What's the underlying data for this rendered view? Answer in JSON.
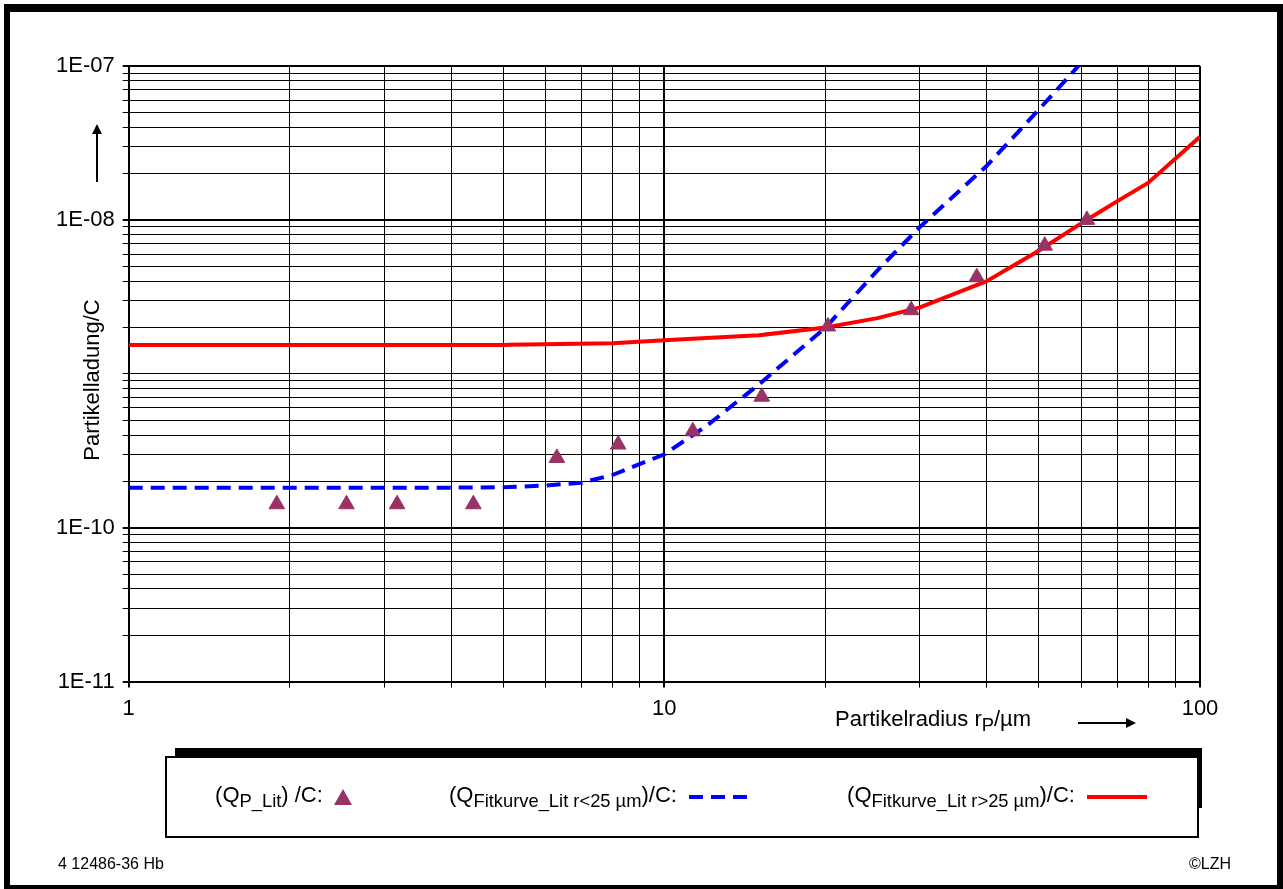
{
  "chart_data": {
    "type": "line",
    "xlabel": "Partikelradius r$_{P}$/µm",
    "ylabel": "Partikelladung/C",
    "log": "xy",
    "grid": true,
    "legend": "bottom",
    "xlim": [
      1,
      100
    ],
    "ylim": [
      1e-11,
      1e-07
    ],
    "xticks": [
      1,
      {
        "value": 2,
        "label": null
      },
      {
        "value": 3,
        "label": null
      },
      {
        "value": 4,
        "label": null
      },
      {
        "value": 5,
        "label": null
      },
      {
        "value": 6,
        "label": null
      },
      {
        "value": 7,
        "label": null
      },
      {
        "value": 8,
        "label": null
      },
      {
        "value": 9,
        "label": null
      },
      10,
      {
        "value": 20,
        "label": null
      },
      {
        "value": 30,
        "label": null
      },
      {
        "value": 40,
        "label": null
      },
      {
        "value": 50,
        "label": null
      },
      {
        "value": 60,
        "label": null
      },
      {
        "value": 70,
        "label": null
      },
      {
        "value": 80,
        "label": null
      },
      {
        "value": 90,
        "label": null
      },
      100
    ],
    "yticks": [
      {
        "value": 1e-11,
        "label": "1E-11"
      },
      {
        "value": 2e-11,
        "label": null
      },
      {
        "value": 3e-11,
        "label": null
      },
      {
        "value": 4e-11,
        "label": null
      },
      {
        "value": 5e-11,
        "label": null
      },
      {
        "value": 6e-11,
        "label": null
      },
      {
        "value": 7e-11,
        "label": null
      },
      {
        "value": 8e-11,
        "label": null
      },
      {
        "value": 9e-11,
        "label": null
      },
      {
        "value": 1e-10,
        "label": "1E-10"
      },
      {
        "value": 2e-10,
        "label": null
      },
      {
        "value": 3e-10,
        "label": null
      },
      {
        "value": 4e-10,
        "label": null
      },
      {
        "value": 5e-10,
        "label": null
      },
      {
        "value": 6e-10,
        "label": null
      },
      {
        "value": 7e-10,
        "label": null
      },
      {
        "value": 8e-10,
        "label": null
      },
      {
        "value": 9e-10,
        "label": null
      },
      {
        "value": 1e-09,
        "label": null
      },
      {
        "value": 2e-09,
        "label": null
      },
      {
        "value": 3e-09,
        "label": null
      },
      {
        "value": 4e-09,
        "label": null
      },
      {
        "value": 5e-09,
        "label": null
      },
      {
        "value": 6e-09,
        "label": null
      },
      {
        "value": 7e-09,
        "label": null
      },
      {
        "value": 8e-09,
        "label": null
      },
      {
        "value": 9e-09,
        "label": null
      },
      {
        "value": 1e-08,
        "label": "1E-08"
      },
      {
        "value": 2e-08,
        "label": null
      },
      {
        "value": 3e-08,
        "label": null
      },
      {
        "value": 4e-08,
        "label": null
      },
      {
        "value": 5e-08,
        "label": null
      },
      {
        "value": 6e-08,
        "label": null
      },
      {
        "value": 7e-08,
        "label": null
      },
      {
        "value": 8e-08,
        "label": null
      },
      {
        "value": 9e-08,
        "label": null
      },
      {
        "value": 1e-07,
        "label": "1E-07"
      }
    ],
    "series": [
      {
        "name": "(Q$_{P_Lit}$) /C:",
        "type": "scatter",
        "marker": "triangle",
        "color": "#993366",
        "x": [
          1.89,
          2.55,
          3.17,
          4.4,
          6.3,
          8.2,
          11.3,
          15.2,
          20.2,
          28.9,
          38.3,
          51.3,
          61.5
        ],
        "values": [
          1.42e-10,
          1.42e-10,
          1.42e-10,
          1.42e-10,
          2.84e-10,
          3.47e-10,
          4.23e-10,
          7.1e-10,
          2.03e-09,
          2.59e-09,
          4.24e-09,
          6.8e-09,
          1e-08
        ]
      },
      {
        "name": "(Q$_{Fitkurve_Lit r<25 µm}$)/C:",
        "type": "line",
        "line_style": "dashed",
        "color": "#0000ff",
        "x": [
          1,
          2,
          3,
          4,
          5,
          6,
          7,
          8,
          10,
          12,
          15,
          20,
          25,
          30,
          40,
          50,
          59.3
        ],
        "values": [
          1.82e-10,
          1.82e-10,
          1.82e-10,
          1.82e-10,
          1.83e-10,
          1.88e-10,
          1.96e-10,
          2.2e-10,
          3e-10,
          4.6e-10,
          8.5e-10,
          2e-09,
          4.7e-09,
          9e-09,
          2.25e-08,
          5.2e-08,
          1e-07
        ]
      },
      {
        "name": "(Q$_{Fitkurve_Lit r>25 µm}$)/C:",
        "type": "line",
        "line_style": "solid",
        "color": "#ff0000",
        "x": [
          1,
          5,
          8,
          10,
          15,
          20,
          25,
          30,
          40,
          50,
          60,
          70,
          80,
          100
        ],
        "values": [
          1.54e-09,
          1.54e-09,
          1.58e-09,
          1.65e-09,
          1.78e-09,
          2e-09,
          2.3e-09,
          2.7e-09,
          4e-09,
          6.3e-09,
          9.5e-09,
          1.32e-08,
          1.74e-08,
          3.47e-08
        ]
      }
    ],
    "annotations": [
      "4 12486-36 Hb",
      "©LZH"
    ]
  }
}
